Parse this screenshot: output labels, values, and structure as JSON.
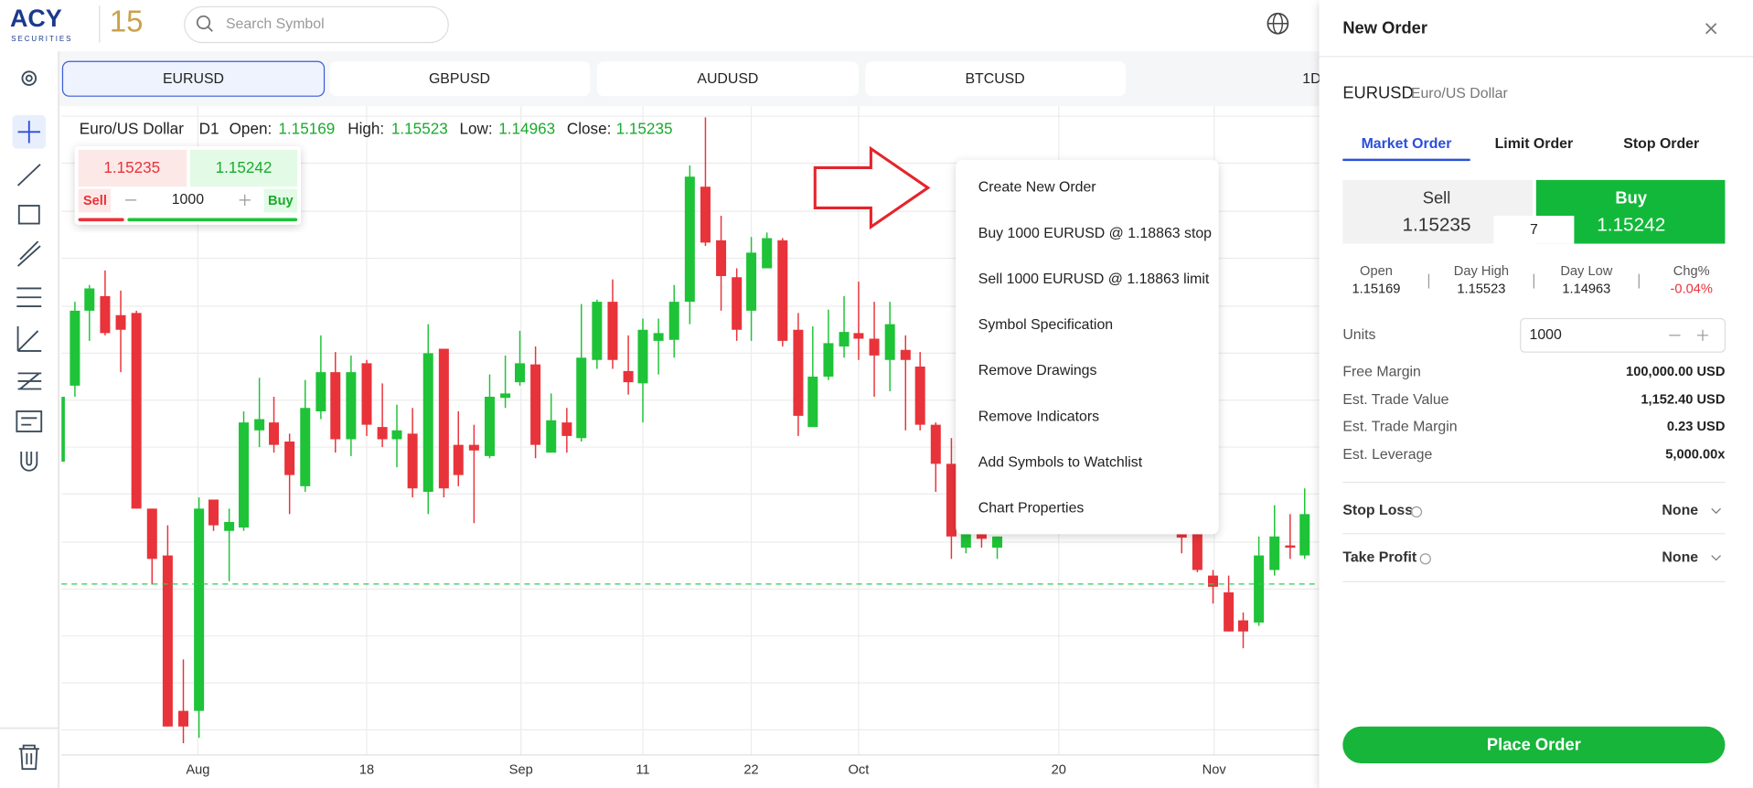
{
  "header": {
    "logo": "ACY",
    "logo_sub": "SECURITIES",
    "anniversary": "15",
    "search_placeholder": "Search Symbol"
  },
  "symbol_tabs": [
    "EURUSD",
    "GBPUSD",
    "AUDUSD",
    "BTCUSD"
  ],
  "timeframe": "1D",
  "chart_legend": {
    "name": "Euro/US Dollar",
    "period": "D1",
    "fields": [
      {
        "label": "Open:",
        "value": "1.15169"
      },
      {
        "label": "High:",
        "value": "1.15523"
      },
      {
        "label": "Low:",
        "value": "1.14963"
      },
      {
        "label": "Close:",
        "value": "1.15235"
      }
    ]
  },
  "quick_trade": {
    "sell_price": "1.15235",
    "buy_price": "1.15242",
    "sell": "Sell",
    "quantity": "1000",
    "buy": "Buy"
  },
  "context_menu": [
    "Create New Order",
    "Buy 1000 EURUSD @ 1.18863 stop",
    "Sell 1000 EURUSD @ 1.18863 limit",
    "Symbol Specification",
    "Remove Drawings",
    "Remove Indicators",
    "Add Symbols to Watchlist",
    "Chart Properties"
  ],
  "x_axis_labels": [
    "Aug",
    "18",
    "Sep",
    "11",
    "22",
    "Oct",
    "20",
    "Nov"
  ],
  "order_panel": {
    "title": "New Order",
    "symbol": "EURUSD",
    "symbol_name": "Euro/US Dollar",
    "order_tabs": [
      "Market Order",
      "Limit Order",
      "Stop Order"
    ],
    "sell": {
      "label": "Sell",
      "price": "1.15235"
    },
    "buy": {
      "label": "Buy",
      "price": "1.15242"
    },
    "spread": "7",
    "stats": [
      {
        "label": "Open",
        "value": "1.15169"
      },
      {
        "label": "Day High",
        "value": "1.15523"
      },
      {
        "label": "Day Low",
        "value": "1.14963"
      },
      {
        "label": "Chg%",
        "value": "-0.04%"
      }
    ],
    "units_label": "Units",
    "units": "1000",
    "rows": [
      {
        "label": "Free Margin",
        "value": "100,000.00 USD"
      },
      {
        "label": "Est. Trade Value",
        "value": "1,152.40 USD"
      },
      {
        "label": "Est. Trade Margin",
        "value": "0.23 USD"
      },
      {
        "label": "Est. Leverage",
        "value": "5,000.00x"
      }
    ],
    "stop_loss": {
      "label": "Stop Loss",
      "value": "None"
    },
    "take_profit": {
      "label": "Take Profit",
      "value": "None"
    },
    "submit": "Place Order"
  }
}
